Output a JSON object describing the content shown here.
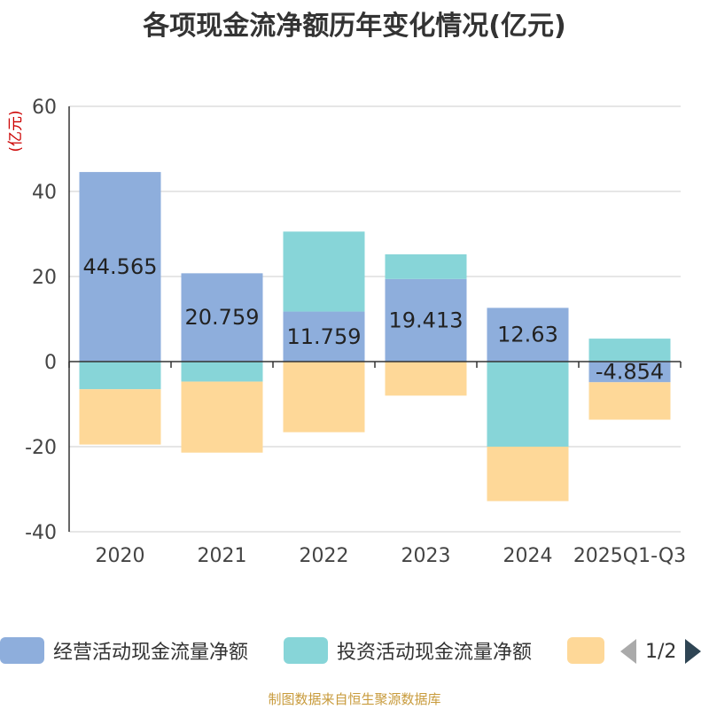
{
  "chart_data": {
    "type": "bar",
    "stacked": true,
    "title": "各项现金流净额历年变化情况(亿元)",
    "ylabel": "(亿元)",
    "xlabel": "",
    "categories": [
      "2020",
      "2021",
      "2022",
      "2023",
      "2024",
      "2025Q1-Q3"
    ],
    "ylim": [
      -40,
      60
    ],
    "yticks": [
      60,
      40,
      20,
      0,
      -20,
      -40
    ],
    "series": [
      {
        "name": "经营活动现金流量净额",
        "color": "#8eaedc",
        "values": [
          44.565,
          20.759,
          11.759,
          19.413,
          12.63,
          -4.854
        ]
      },
      {
        "name": "投资活动现金流量净额",
        "color": "#87d5d8",
        "values": [
          -6.5,
          -4.7,
          18.8,
          5.8,
          -20.0,
          5.4
        ]
      },
      {
        "name": "",
        "color": "#fed898",
        "values": [
          -13.0,
          -16.7,
          -16.6,
          -8.0,
          -12.8,
          -8.8
        ]
      }
    ],
    "data_labels": [
      "44.565",
      "20.759",
      "11.759",
      "19.413",
      "12.63",
      "-4.854"
    ],
    "legend_position": "bottom"
  },
  "legend": {
    "pager_text": "1/2"
  },
  "footer": {
    "source": "制图数据来自恒生聚源数据库"
  }
}
